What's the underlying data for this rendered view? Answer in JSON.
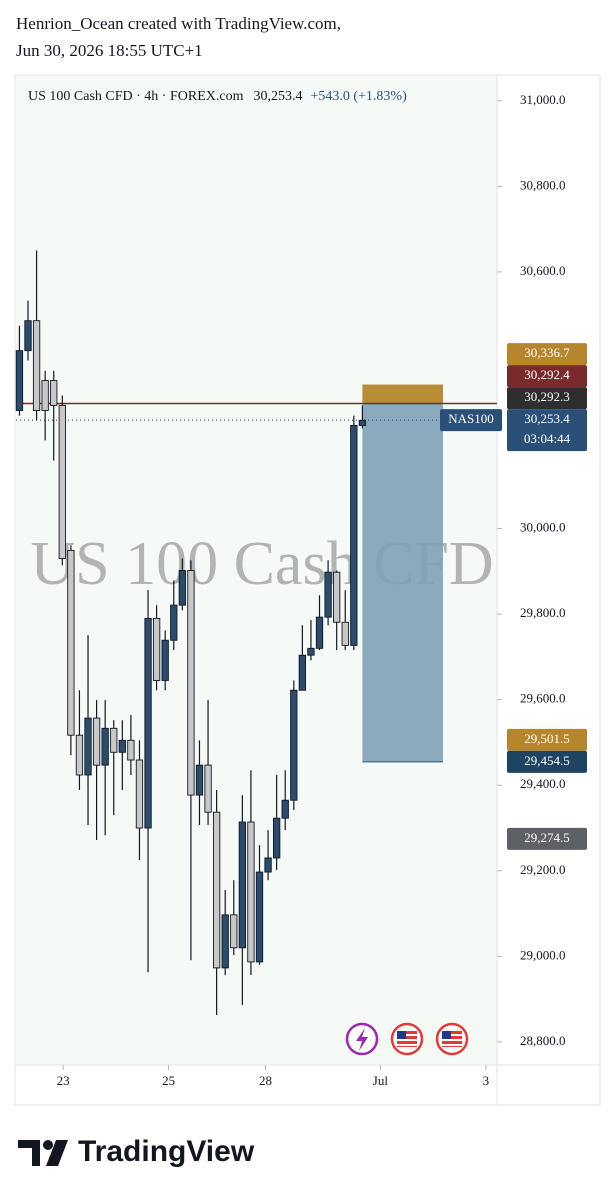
{
  "header": {
    "line1": "Henrion_Ocean created with TradingView.com,",
    "line2": "Jun 30, 2026 18:55 UTC+1"
  },
  "chart_data": {
    "type": "candlestick",
    "title": "US 100 Cash CFD · 4h · FOREX.com",
    "last_price": "30,253.4",
    "change": "+543.0 (+1.83%)",
    "watermark": "US 100 Cash CFD",
    "x": [
      0,
      1,
      2,
      3,
      4,
      5,
      6,
      7,
      8,
      9,
      10,
      11,
      12,
      13,
      14,
      15,
      16,
      17,
      18,
      19,
      20,
      21,
      22,
      23,
      24,
      25,
      26,
      27,
      28,
      29,
      30,
      31,
      32,
      33,
      34,
      35,
      36,
      37,
      38,
      39,
      40
    ],
    "open": [
      30276,
      30416,
      30486,
      30346,
      30346,
      30288,
      29949,
      29517,
      29424,
      29557,
      29447,
      29533,
      29477,
      29505,
      29459,
      29300,
      29790,
      29645,
      29739,
      29821,
      29902,
      29377,
      29447,
      29337,
      28973,
      29097,
      29020,
      29314,
      28987,
      29197,
      29230,
      29323,
      29365,
      29622,
      29704,
      29720,
      29793,
      29898,
      29781,
      29727,
      30241
    ],
    "high": [
      30474,
      30533,
      30650,
      30369,
      30369,
      30311,
      29961,
      29622,
      29751,
      29599,
      29599,
      29552,
      29552,
      29564,
      29505,
      29856,
      29821,
      29762,
      29879,
      29930,
      29926,
      29505,
      29599,
      29389,
      29155,
      29178,
      29377,
      29435,
      29260,
      29295,
      29424,
      29435,
      29645,
      29774,
      29786,
      29844,
      29926,
      29902,
      29856,
      30264,
      30288
    ],
    "low": [
      30264,
      30393,
      30253,
      30206,
      30159,
      29914,
      29470,
      29389,
      29307,
      29272,
      29283,
      29330,
      29389,
      29424,
      29225,
      28963,
      29622,
      29622,
      29716,
      29809,
      28991,
      29307,
      29307,
      28863,
      28956,
      29003,
      28886,
      28956,
      28980,
      29178,
      29202,
      29295,
      29342,
      29622,
      29692,
      29716,
      29774,
      29716,
      29716,
      29716,
      30234
    ],
    "close": [
      30416,
      30486,
      30276,
      30276,
      30288,
      29930,
      29517,
      29424,
      29557,
      29447,
      29533,
      29477,
      29505,
      29459,
      29300,
      29790,
      29645,
      29739,
      29821,
      29902,
      29377,
      29447,
      29337,
      28973,
      29097,
      29020,
      29314,
      28987,
      29197,
      29230,
      29323,
      29365,
      29622,
      29704,
      29720,
      29793,
      29898,
      29781,
      29727,
      30241,
      30253
    ],
    "up_color": "#2b4c6c",
    "down_color": "#c8c8c8",
    "xlim": [
      -0.4,
      55.7
    ],
    "xticks": [
      {
        "value": 5.1,
        "label": "23"
      },
      {
        "value": 17.4,
        "label": "25"
      },
      {
        "value": 28.7,
        "label": "28"
      },
      {
        "value": 42.1,
        "label": "Jul"
      },
      {
        "value": 54.4,
        "label": "3"
      }
    ],
    "ylim": [
      28746,
      31058
    ],
    "yticks": [
      {
        "value": 31000,
        "label": "31,000.0"
      },
      {
        "value": 30800,
        "label": "30,800.0"
      },
      {
        "value": 30600,
        "label": "30,600.0"
      },
      {
        "value": 30000,
        "label": "30,000.0"
      },
      {
        "value": 29800,
        "label": "29,800.0"
      },
      {
        "value": 29600,
        "label": "29,600.0"
      },
      {
        "value": 29400,
        "label": "29,400.0"
      },
      {
        "value": 29200,
        "label": "29,200.0"
      },
      {
        "value": 29000,
        "label": "29,000.0"
      },
      {
        "value": 28800,
        "label": "28,800.0"
      }
    ],
    "grid": false,
    "price_labels": [
      {
        "value": 30336.7,
        "label": "30,336.7",
        "color": "#b5862b"
      },
      {
        "value": 30292.4,
        "label": "30,292.4",
        "color": "#7a2a2a"
      },
      {
        "value": 30292.3,
        "label": "30,292.3",
        "color": "#2e2e2e"
      },
      {
        "value": 29501.5,
        "label": "29,501.5",
        "color": "#b5862b"
      },
      {
        "value": 29454.5,
        "label": "29,454.5",
        "color": "#1f4463"
      },
      {
        "value": 29274.5,
        "label": "29,274.5",
        "color": "#5d6066"
      }
    ],
    "current_price": {
      "value": 30253.4,
      "label": "30,253.4",
      "symbol": "NAS100",
      "countdown": "03:04:44",
      "color": "#2a5078"
    },
    "level_line": {
      "value": 30292.4,
      "color": "#7a2a2a"
    },
    "position": {
      "x": [
        40,
        49.4
      ],
      "stop": 30336.7,
      "entry": 30292.3,
      "target": 29454.5,
      "stop_color": "#b5862b",
      "target_color": "#7fa1b6"
    }
  },
  "footer": {
    "brand": "TradingView"
  }
}
